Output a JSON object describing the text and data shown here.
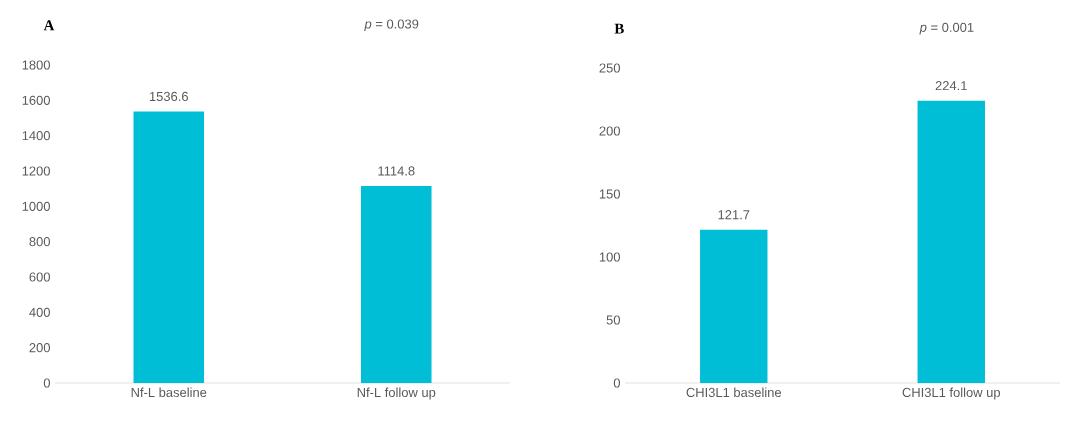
{
  "chart_data": [
    {
      "type": "bar",
      "title": "A",
      "annotations": [
        "*p* = 0.039"
      ],
      "categories": [
        "Nf-L baseline",
        "Nf-L follow up"
      ],
      "values": [
        1536.6,
        1114.8
      ],
      "color": "#00bed6",
      "ylim": [
        0,
        1800
      ],
      "yticks": [
        0,
        200,
        400,
        600,
        800,
        1000,
        1200,
        1400,
        1600,
        1800
      ],
      "data_labels": true
    },
    {
      "type": "bar",
      "title": "B",
      "annotations": [
        "*p* = 0.001"
      ],
      "categories": [
        "CHI3L1 baseline",
        "CHI3L1 follow up"
      ],
      "values": [
        121.7,
        224.1
      ],
      "color": "#00bed6",
      "ylim": [
        0,
        250
      ],
      "yticks": [
        0,
        50,
        100,
        150,
        200,
        250
      ],
      "data_labels": true
    }
  ]
}
